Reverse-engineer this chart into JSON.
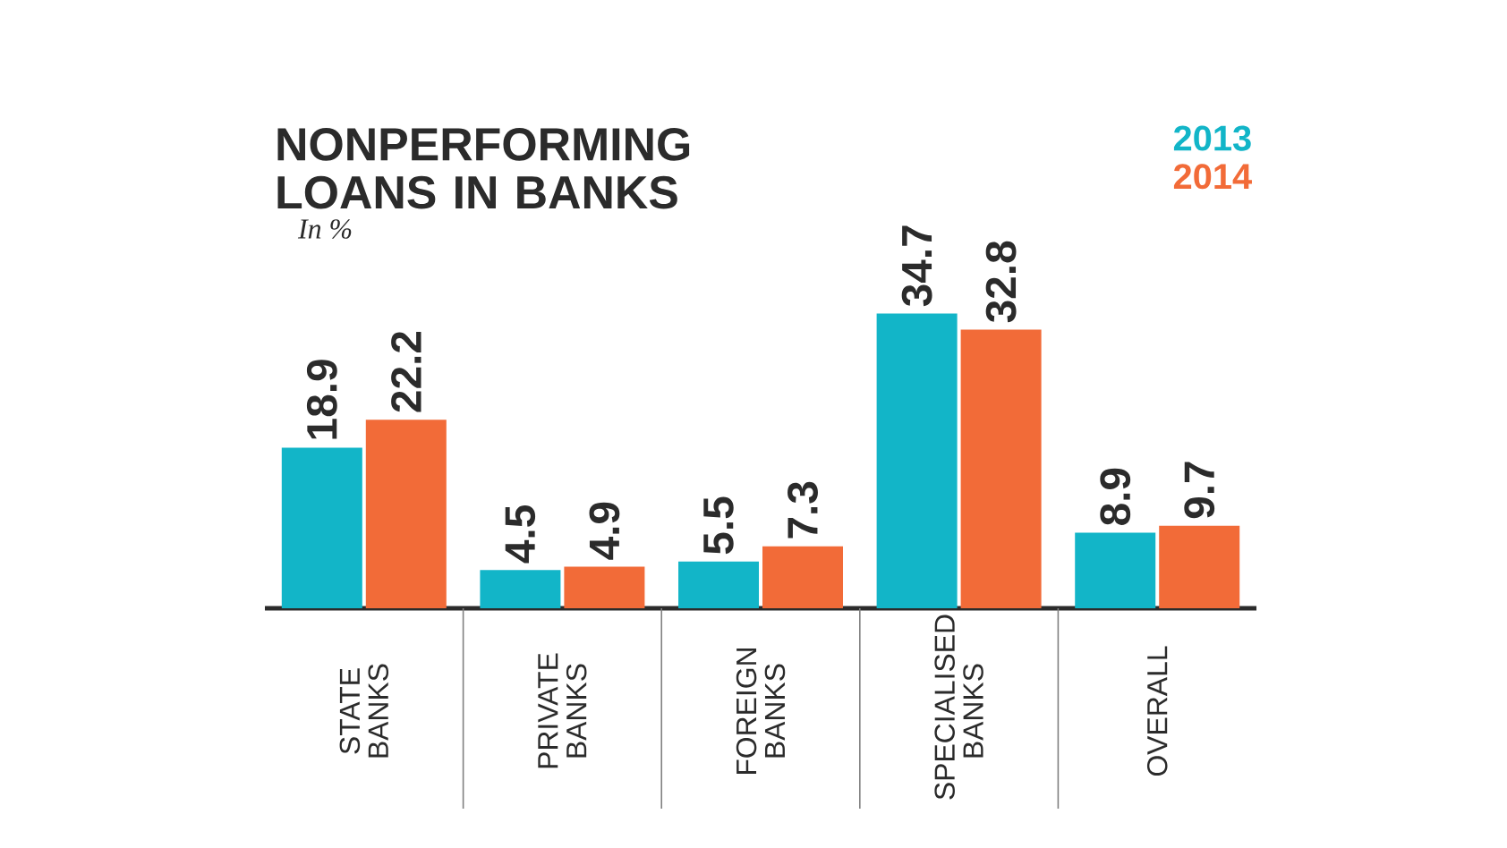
{
  "chart_data": {
    "type": "bar",
    "title": "NONPERFORMING LOANS IN BANKS",
    "subtitle": "In %",
    "categories": [
      "STATE BANKS",
      "PRIVATE BANKS",
      "FOREIGN BANKS",
      "SPECIALISED BANKS",
      "OVERALL"
    ],
    "series": [
      {
        "name": "2013",
        "color": "#12b5c8",
        "values": [
          18.9,
          4.5,
          5.5,
          34.7,
          8.9
        ]
      },
      {
        "name": "2014",
        "color": "#f26b38",
        "values": [
          22.2,
          4.9,
          7.3,
          32.8,
          9.7
        ]
      }
    ],
    "data_labels": true,
    "legend": "top right",
    "grid": false
  }
}
